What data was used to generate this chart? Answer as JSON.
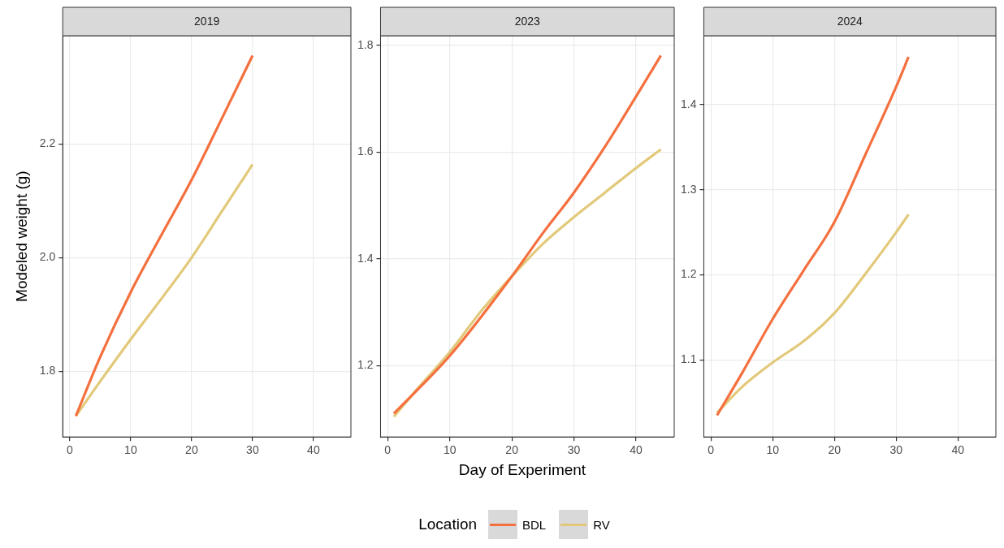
{
  "chart_data": [
    {
      "type": "line",
      "title": "2019",
      "ylabel": "Modeled weight (g)",
      "legend": "bottom",
      "xlim": [
        -1.15,
        46.15
      ],
      "xticks": [
        0,
        10,
        20,
        30,
        40
      ],
      "ylim": [
        1.684,
        2.391
      ],
      "yticks": [
        1.8,
        {
          "value": 2,
          "label": "2.0"
        },
        2.2
      ],
      "grid": true,
      "series": [
        {
          "name": "BDL",
          "color": "#f4703f",
          "x": [
            1,
            5,
            10,
            15,
            20,
            25,
            30
          ],
          "values": [
            1.721,
            1.825,
            1.939,
            2.039,
            2.137,
            2.246,
            2.356
          ]
        },
        {
          "name": "RV",
          "color": "#e2c97a",
          "x": [
            1,
            5,
            10,
            15,
            20,
            25,
            30
          ],
          "values": [
            1.721,
            1.782,
            1.856,
            1.927,
            2.0,
            2.082,
            2.164
          ]
        }
      ]
    },
    {
      "type": "line",
      "title": "2023",
      "xlabel": "Day of Experiment",
      "legend_title": "Location",
      "legend": "bottom",
      "xlim": [
        -1.15,
        46.15
      ],
      "xticks": [
        0,
        10,
        20,
        30,
        40
      ],
      "ylim": [
        1.066,
        1.818
      ],
      "yticks": [
        1.2,
        1.4,
        1.6,
        1.8
      ],
      "grid": true,
      "series": [
        {
          "name": "BDL",
          "color": "#f4703f",
          "x": [
            1,
            10,
            20,
            25,
            30,
            35,
            40,
            44
          ],
          "values": [
            1.11,
            1.218,
            1.367,
            1.448,
            1.524,
            1.61,
            1.704,
            1.781
          ]
        },
        {
          "name": "RV",
          "color": "#e2c97a",
          "x": [
            1,
            5,
            10,
            15,
            20,
            25,
            30,
            35,
            40,
            44
          ],
          "values": [
            1.104,
            1.159,
            1.225,
            1.301,
            1.367,
            1.428,
            1.478,
            1.524,
            1.57,
            1.605
          ]
        }
      ]
    },
    {
      "type": "line",
      "title": "2024",
      "legend": "bottom",
      "xlim": [
        -1.15,
        46.15
      ],
      "xticks": [
        0,
        10,
        20,
        30,
        40
      ],
      "ylim": [
        1.0095,
        1.481
      ],
      "yticks": [
        1.1,
        1.2,
        1.3,
        1.4
      ],
      "grid": true,
      "series": [
        {
          "name": "BDL",
          "color": "#f4703f",
          "x": [
            1,
            5,
            10,
            15,
            20,
            25,
            30,
            32
          ],
          "values": [
            1.035,
            1.084,
            1.148,
            1.205,
            1.262,
            1.341,
            1.421,
            1.456
          ]
        },
        {
          "name": "RV",
          "color": "#e2c97a",
          "x": [
            1,
            5,
            10,
            15,
            20,
            25,
            30,
            32
          ],
          "values": [
            1.038,
            1.068,
            1.097,
            1.122,
            1.155,
            1.201,
            1.25,
            1.271
          ]
        }
      ]
    }
  ]
}
